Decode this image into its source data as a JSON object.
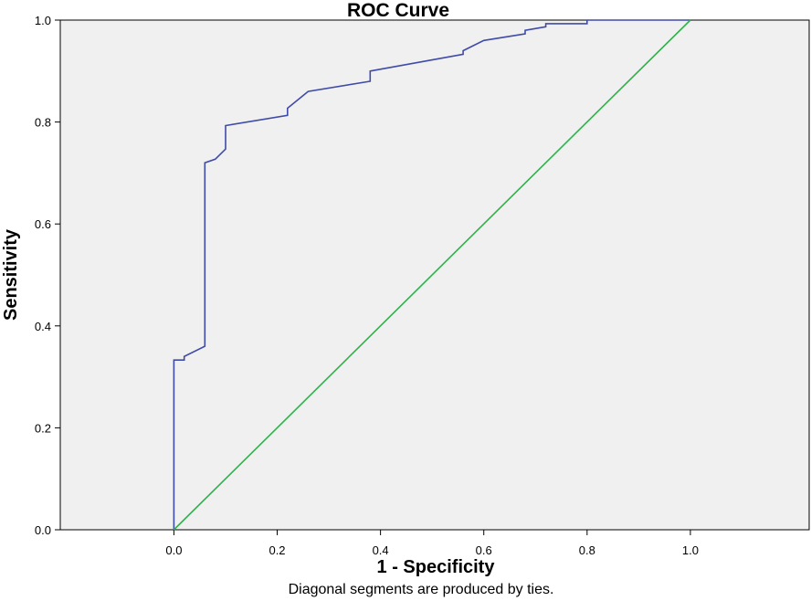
{
  "chart_data": {
    "type": "line",
    "title": "ROC Curve",
    "xlabel": "1 - Specificity",
    "ylabel": "Sensitivity",
    "footnote": "Diagonal segments are produced by ties.",
    "xlim": [
      -0.22,
      1.23
    ],
    "ylim": [
      0,
      1
    ],
    "x_ticks": [
      0.0,
      0.2,
      0.4,
      0.6,
      0.8,
      1.0
    ],
    "x_tick_labels": [
      "0.0",
      "0.2",
      "0.4",
      "0.6",
      "0.8",
      "1.0"
    ],
    "y_ticks": [
      0.0,
      0.2,
      0.4,
      0.6,
      0.8,
      1.0
    ],
    "y_tick_labels": [
      "0.0",
      "0.2",
      "0.4",
      "0.6",
      "0.8",
      "1.0"
    ],
    "grid": false,
    "background_color": "#f0f0f0",
    "series": [
      {
        "color": "#3f4ba8",
        "x": [
          0.0,
          0.0,
          0.02,
          0.02,
          0.06,
          0.06,
          0.08,
          0.1,
          0.1,
          0.22,
          0.22,
          0.26,
          0.38,
          0.38,
          0.56,
          0.56,
          0.6,
          0.68,
          0.68,
          0.72,
          0.72,
          0.8,
          0.8,
          1.0
        ],
        "y": [
          0.0,
          0.333,
          0.333,
          0.34,
          0.36,
          0.72,
          0.727,
          0.747,
          0.793,
          0.813,
          0.827,
          0.86,
          0.88,
          0.9,
          0.933,
          0.94,
          0.96,
          0.973,
          0.98,
          0.987,
          0.993,
          0.993,
          1.0,
          1.0
        ]
      },
      {
        "color": "#2db34a",
        "x": [
          0.0,
          1.0
        ],
        "y": [
          0.0,
          1.0
        ]
      }
    ]
  }
}
